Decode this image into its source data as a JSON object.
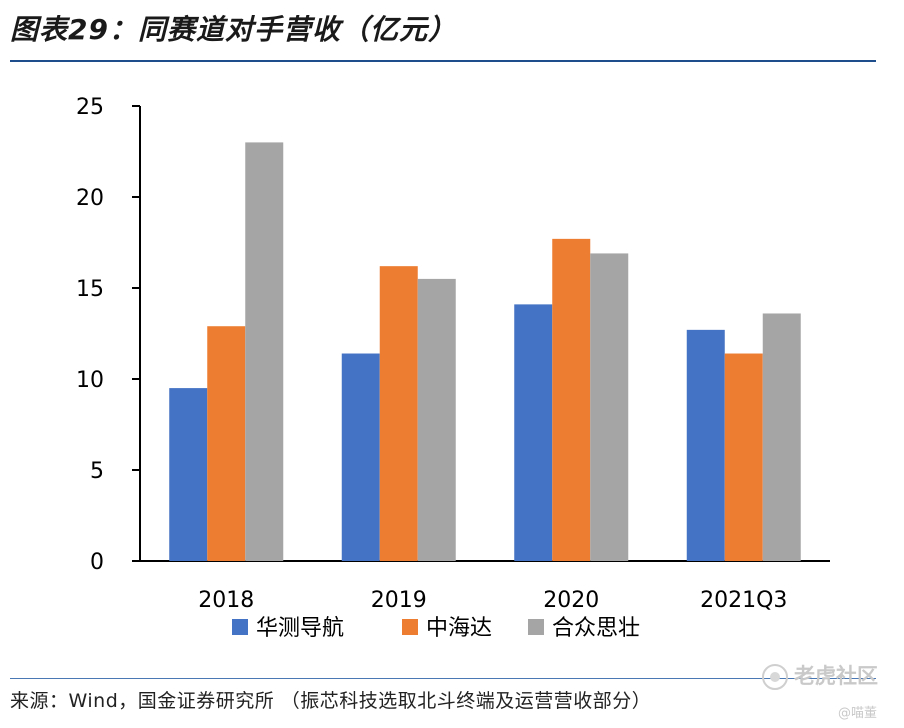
{
  "header": {
    "title": "图表29：同赛道对手营收（亿元）"
  },
  "chart_data": {
    "type": "bar",
    "categories": [
      "2018",
      "2019",
      "2020",
      "2021Q3"
    ],
    "series": [
      {
        "name": "华测导航",
        "color": "#4472c4",
        "values": [
          9.5,
          11.4,
          14.1,
          12.7
        ]
      },
      {
        "name": "中海达",
        "color": "#ed7d31",
        "values": [
          12.9,
          16.2,
          17.7,
          11.4
        ]
      },
      {
        "name": "合众思壮",
        "color": "#a5a5a5",
        "values": [
          23.0,
          15.5,
          16.9,
          13.6
        ]
      }
    ],
    "ylim": [
      0,
      25
    ],
    "yticks": [
      0,
      5,
      10,
      15,
      20,
      25
    ],
    "xlabel": "",
    "ylabel": "",
    "grid": false,
    "legend": "bottom"
  },
  "footer": {
    "source": "来源：Wind，国金证券研究所 （振芯科技选取北斗终端及运营营收部分）"
  },
  "watermark": {
    "text": "老虎社区",
    "sub": "@喵董"
  }
}
